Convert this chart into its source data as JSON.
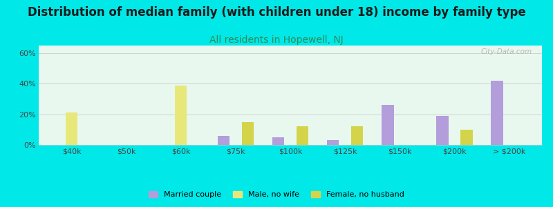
{
  "title": "Distribution of median family (with children under 18) income by family type",
  "subtitle": "All residents in Hopewell, NJ",
  "categories": [
    "$40k",
    "$50k",
    "$60k",
    "$75k",
    "$100k",
    "$125k",
    "$150k",
    "$200k",
    "> $200k"
  ],
  "series": {
    "Married couple": [
      0,
      0,
      0,
      6,
      5,
      3,
      26,
      19,
      42
    ],
    "Male, no wife": [
      21,
      0,
      39,
      0,
      0,
      0,
      0,
      0,
      0
    ],
    "Female, no husband": [
      0,
      0,
      0,
      15,
      12,
      12,
      0,
      10,
      0
    ]
  },
  "colors": {
    "Married couple": "#b39ddb",
    "Male, no wife": "#e8e87a",
    "Female, no husband": "#d4d44a"
  },
  "ylim": [
    0,
    65
  ],
  "yticks": [
    0,
    20,
    40,
    60
  ],
  "ytick_labels": [
    "0%",
    "20%",
    "40%",
    "60%"
  ],
  "background_color": "#00e8e8",
  "title_fontsize": 12,
  "subtitle_fontsize": 10,
  "subtitle_color": "#2e8b57",
  "bar_width": 0.22,
  "watermark": "City-Data.com"
}
